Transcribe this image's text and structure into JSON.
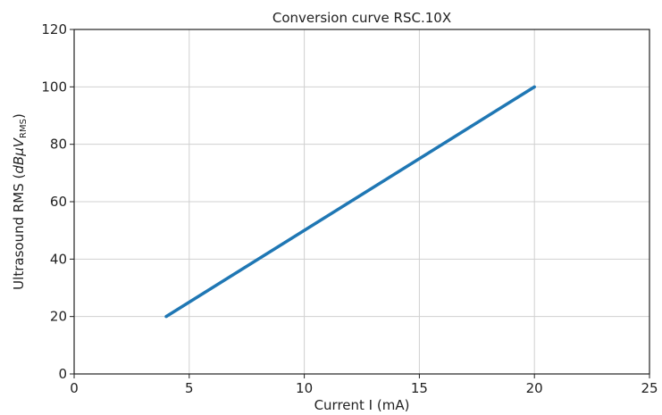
{
  "chart_data": {
    "type": "line",
    "title": "Conversion curve RSC.10X",
    "xlabel": "Current I (mA)",
    "ylabel": {
      "prefix": "Ultrasound RMS (",
      "unit_main": "dBμV",
      "unit_sub": "RMS",
      "suffix": ")"
    },
    "xlim": [
      0,
      25
    ],
    "ylim": [
      0,
      120
    ],
    "xticks": [
      0,
      5,
      10,
      15,
      20,
      25
    ],
    "yticks": [
      0,
      20,
      40,
      60,
      80,
      100,
      120
    ],
    "grid": true,
    "series": [
      {
        "color": "#1f77b4",
        "points": [
          {
            "x": 4,
            "y": 20
          },
          {
            "x": 20,
            "y": 100
          }
        ]
      }
    ]
  }
}
